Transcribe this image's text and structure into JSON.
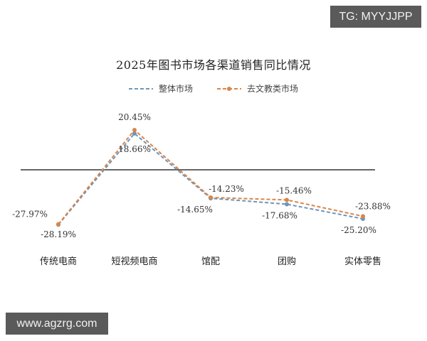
{
  "watermarks": {
    "top_right": "TG: MYYJJPP",
    "bottom_left": "www.agzrg.com"
  },
  "colors": {
    "overall_market": "#6f96b9",
    "excluding_edu": "#d9854a",
    "zero_line": "#333333",
    "watermark_bg": "#5a5a5a"
  },
  "chart_data": {
    "type": "line",
    "title": "2025年图书市场各渠道销售同比情况",
    "xlabel": "",
    "ylabel": "",
    "grid": false,
    "legend_position": "top",
    "categories": [
      "传统电商",
      "短视频电商",
      "馆配",
      "团购",
      "实体零售"
    ],
    "series": [
      {
        "name": "整体市场",
        "style": "dashed",
        "color": "#6f96b9",
        "values": [
          -28.19,
          18.66,
          -14.65,
          -17.68,
          -25.2
        ],
        "labels": [
          "-28.19%",
          "18.66%",
          "-14.65%",
          "-17.68%",
          "-25.20%"
        ]
      },
      {
        "name": "去文教类市场",
        "style": "dashed-with-markers",
        "color": "#d9854a",
        "values": [
          -27.97,
          20.45,
          -14.23,
          -15.46,
          -23.88
        ],
        "labels": [
          "-27.97%",
          "20.45%",
          "-14.23%",
          "-15.46%",
          "-23.88%"
        ]
      }
    ],
    "zero_line": true
  }
}
